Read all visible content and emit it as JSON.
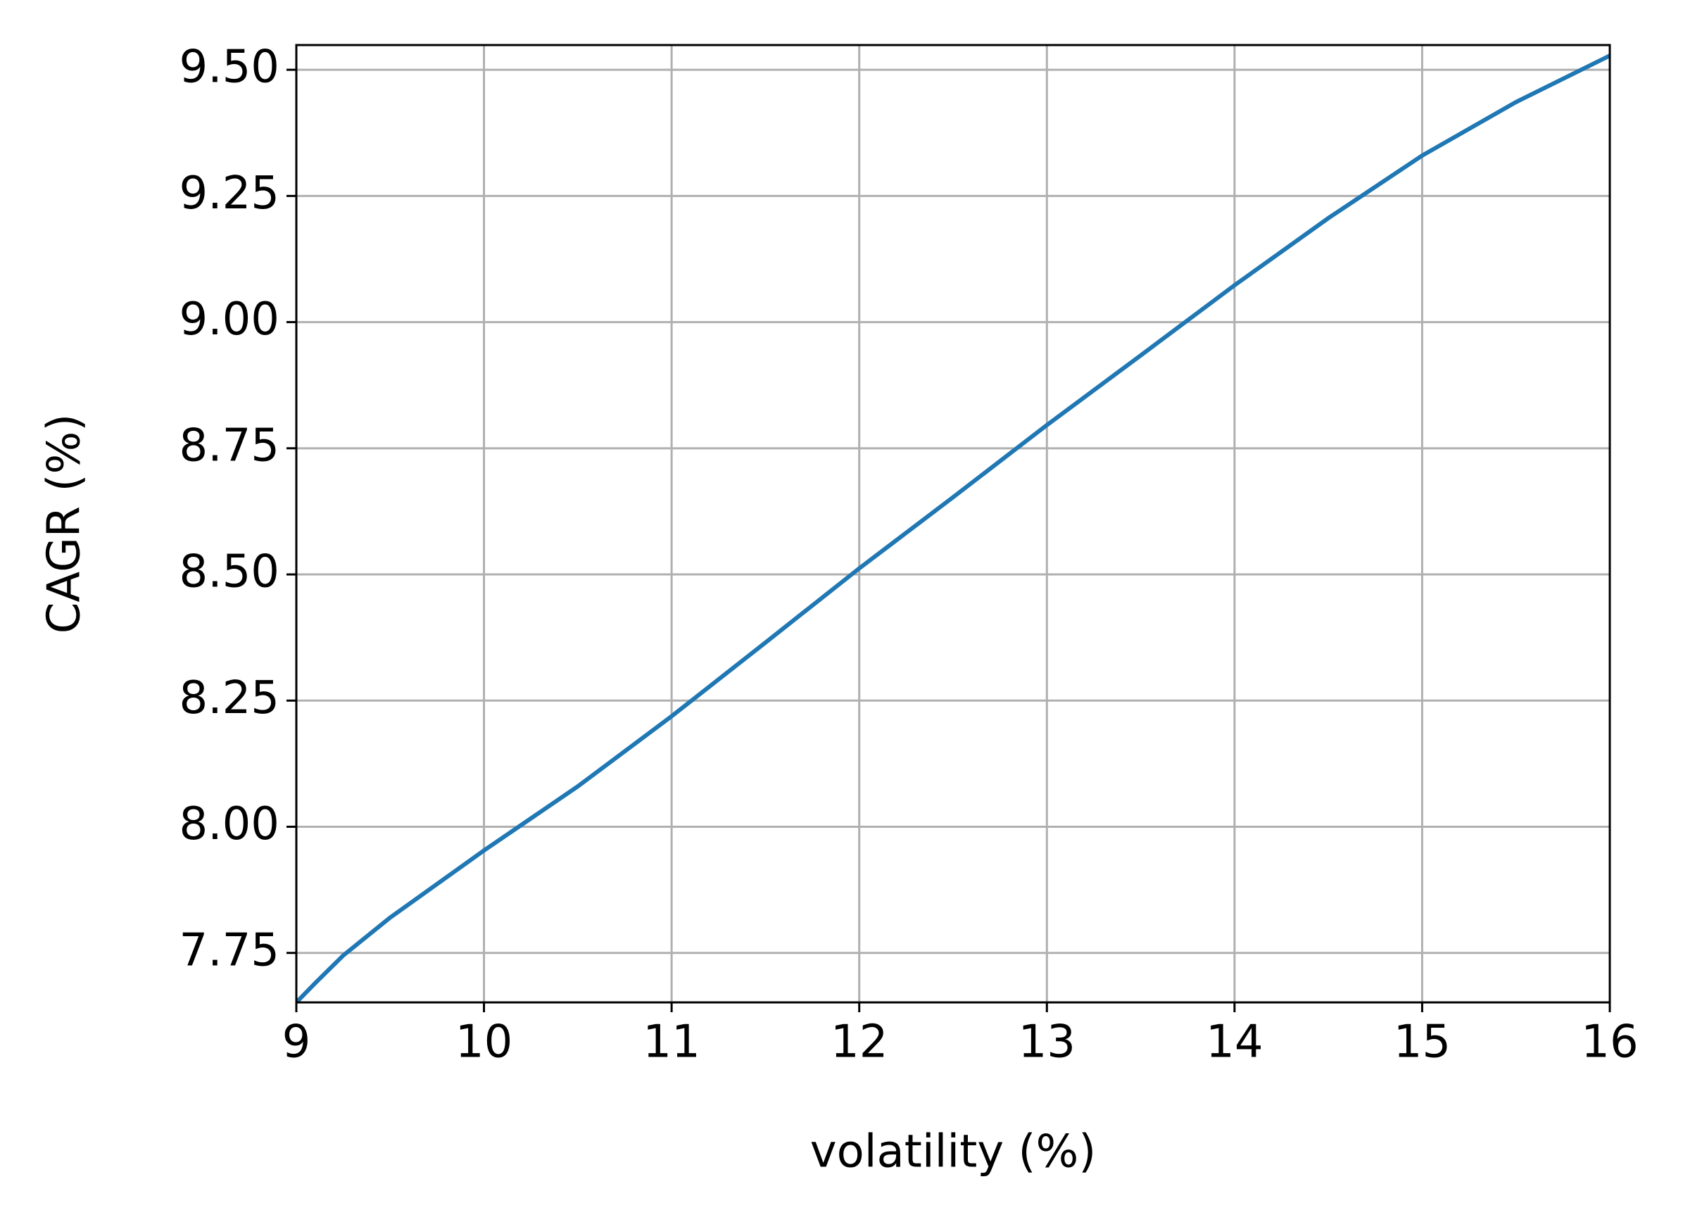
{
  "chart_data": {
    "type": "line",
    "x_label": "volatility (%)",
    "y_label": "CAGR (%)",
    "series": [
      {
        "name": "CAGR",
        "color": "#1f77b4",
        "x": [
          9,
          9.1,
          9.25,
          9.5,
          10,
          10.5,
          11,
          11.5,
          12,
          12.5,
          13,
          13.5,
          14,
          14.5,
          15,
          15.5,
          16
        ],
        "values": [
          7.652,
          7.69,
          7.745,
          7.82,
          7.953,
          8.08,
          8.219,
          8.365,
          8.512,
          8.653,
          8.796,
          8.934,
          9.073,
          9.206,
          9.33,
          9.436,
          9.528
        ]
      }
    ],
    "xlim": [
      9,
      16
    ],
    "xticks": [
      9,
      10,
      11,
      12,
      13,
      14,
      15,
      16
    ],
    "ylim": [
      7.652,
      9.549
    ],
    "yticks": [
      {
        "value": 7.75,
        "label": "7.75"
      },
      {
        "value": 8.0,
        "label": "8.00"
      },
      {
        "value": 8.25,
        "label": "8.25"
      },
      {
        "value": 8.5,
        "label": "8.50"
      },
      {
        "value": 8.75,
        "label": "8.75"
      },
      {
        "value": 9.0,
        "label": "9.00"
      },
      {
        "value": 9.25,
        "label": "9.25"
      },
      {
        "value": 9.5,
        "label": "9.50"
      }
    ],
    "grid": true
  }
}
